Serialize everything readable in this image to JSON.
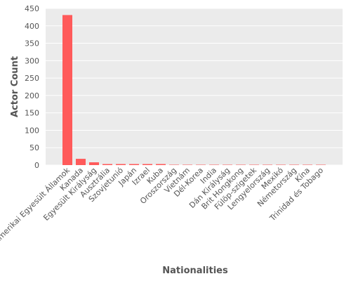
{
  "chart_data": {
    "type": "bar",
    "title": "",
    "xlabel": "Nationalities",
    "ylabel": "Actor Count",
    "categories": [
      "Amerikai Egyesült Államok",
      "Kanada",
      "Egyesült Királyság",
      "Ausztrália",
      "Szovjetunió",
      "Japán",
      "Izrael",
      "Kuba",
      "Oroszország",
      "Vietnám",
      "Dél-Korea",
      "India",
      "Dán Királyság",
      "Brit Hongkong",
      "Fülöp-szigetek",
      "Lengyelország",
      "Mexikó",
      "Németország",
      "Kína",
      "Trinidad és Tobago"
    ],
    "values": [
      431,
      18,
      8,
      3,
      3,
      3,
      3,
      3,
      1,
      1,
      1,
      1,
      1,
      1,
      1,
      1,
      1,
      1,
      1,
      1
    ],
    "ylim": [
      0,
      450
    ],
    "yticks": [
      0,
      50,
      100,
      150,
      200,
      250,
      300,
      350,
      400,
      450
    ],
    "grid": true,
    "colors": {
      "bar": "#ff5a5a",
      "plot_background": "#ebebeb",
      "grid": "#ffffff",
      "text": "#555555"
    }
  }
}
